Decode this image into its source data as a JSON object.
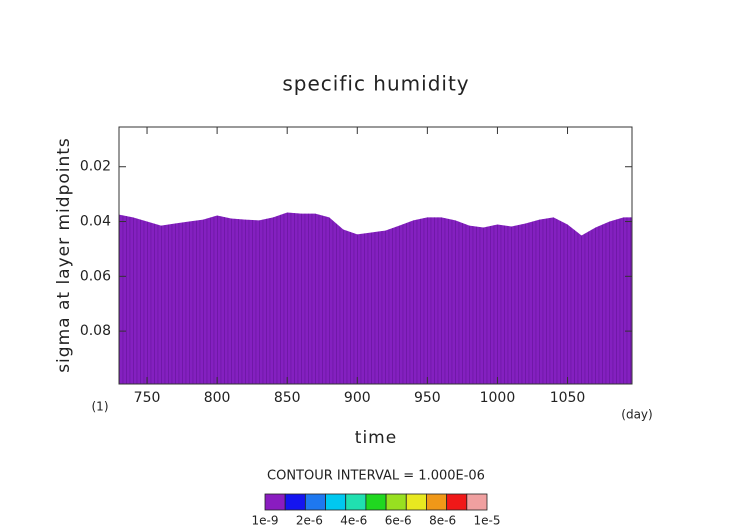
{
  "chart_data": {
    "type": "area",
    "title": "specific humidity",
    "x_label": "time",
    "y_label": "sigma at layer midpoints",
    "x_unit": "(day)",
    "level_label": "(1)",
    "contour_note": "CONTOUR INTERVAL = 1.000E-06",
    "x": [
      730,
      740,
      750,
      760,
      770,
      780,
      790,
      800,
      810,
      820,
      830,
      840,
      850,
      860,
      870,
      880,
      890,
      900,
      910,
      920,
      930,
      940,
      950,
      960,
      970,
      980,
      990,
      1000,
      1010,
      1020,
      1030,
      1040,
      1050,
      1060,
      1070,
      1080,
      1090,
      1096
    ],
    "series": [
      {
        "color": "#8420c0",
        "values": [
          0.0375,
          0.0385,
          0.04,
          0.0415,
          0.0407,
          0.04,
          0.0393,
          0.0378,
          0.0389,
          0.0393,
          0.0396,
          0.0385,
          0.0367,
          0.0371,
          0.0371,
          0.0385,
          0.0429,
          0.0447,
          0.044,
          0.0433,
          0.0415,
          0.0396,
          0.0385,
          0.0385,
          0.0396,
          0.0415,
          0.0422,
          0.0411,
          0.0418,
          0.0407,
          0.0393,
          0.0385,
          0.0411,
          0.0451,
          0.0422,
          0.04,
          0.0385,
          0.0385
        ]
      }
    ],
    "xlim": [
      730,
      1096
    ],
    "ylim": [
      0.0055,
      0.0993
    ],
    "y_inverted": true,
    "xticks": [
      750,
      800,
      850,
      900,
      950,
      1000,
      1050
    ],
    "yticks": [
      0.02,
      0.04,
      0.06,
      0.08
    ],
    "colorbar": {
      "colors": [
        "#8a1cc0",
        "#1414f0",
        "#1e78f0",
        "#00c8f0",
        "#20e0b0",
        "#20d820",
        "#98e020",
        "#e8e820",
        "#f09818",
        "#f01818",
        "#f0a0a0"
      ],
      "lim": [
        1e-09,
        1e-05
      ],
      "ticks": [
        {
          "value": 1e-09,
          "label": "1e-9"
        },
        {
          "value": 2e-06,
          "label": "2e-6"
        },
        {
          "value": 4e-06,
          "label": "4e-6"
        },
        {
          "value": 6e-06,
          "label": "6e-6"
        },
        {
          "value": 8e-06,
          "label": "8e-6"
        },
        {
          "value": 1e-05,
          "label": "1e-5"
        }
      ]
    }
  }
}
